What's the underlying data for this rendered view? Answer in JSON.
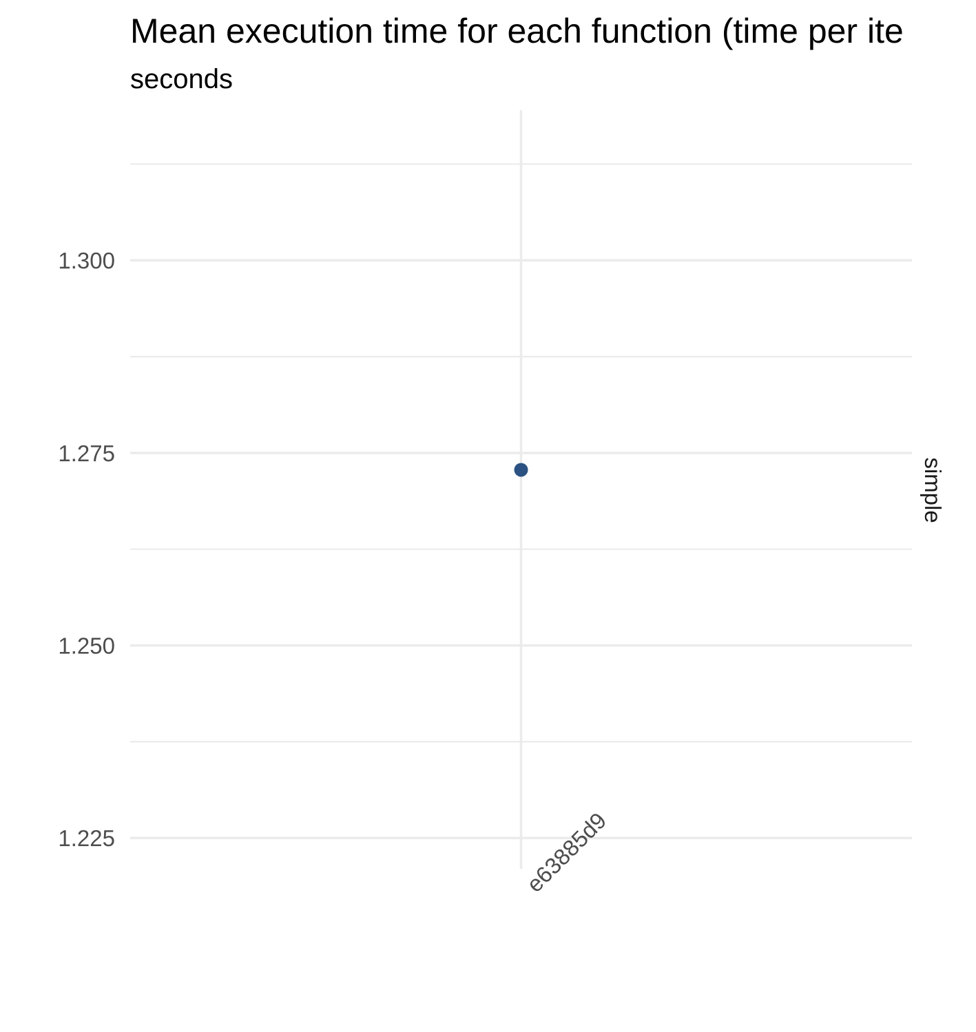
{
  "chart_data": {
    "type": "scatter",
    "title": "Mean execution time for each function (time per ite",
    "subtitle": "seconds",
    "xlabel": "",
    "ylabel": "",
    "facet_label": "simple",
    "categories": [
      "e63885d9"
    ],
    "series": [
      {
        "values": [
          1.2728
        ]
      }
    ],
    "ylim": [
      1.221,
      1.3195
    ],
    "y_ticks": [
      1.225,
      1.25,
      1.275,
      1.3
    ],
    "y_tick_labels": [
      "1.225",
      "1.250",
      "1.275",
      "1.300"
    ],
    "y_minor_ticks": [
      1.2375,
      1.2625,
      1.2875,
      1.3125
    ],
    "grid": true,
    "legend": "none",
    "point_color": "#2b5282",
    "grid_color": "#ebebeb"
  }
}
